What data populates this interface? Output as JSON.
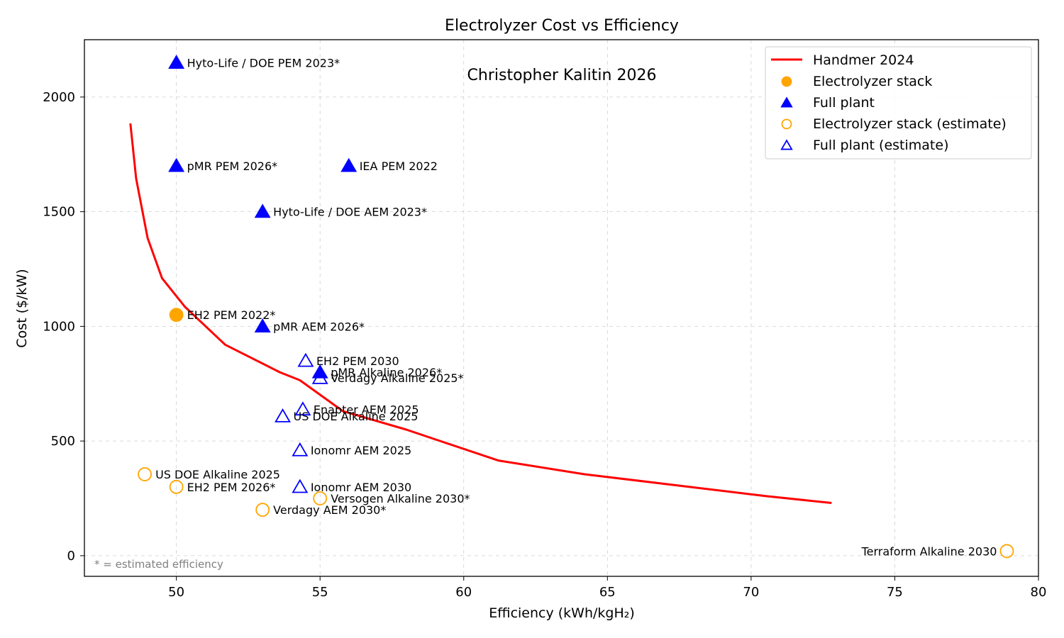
{
  "chart_data": {
    "type": "scatter",
    "title": "Electrolyzer Cost vs Efficiency",
    "watermark": "Christopher Kalitin 2026",
    "footnote": "* = estimated efficiency",
    "xlabel": "Efficiency (kWh/kgH₂)",
    "ylabel": "Cost ($/kW)",
    "xlim": [
      46.8,
      80
    ],
    "ylim": [
      -90,
      2250
    ],
    "x_ticks": [
      50,
      55,
      60,
      65,
      70,
      75,
      80
    ],
    "y_ticks": [
      0,
      500,
      1000,
      1500,
      2000
    ],
    "grid": true,
    "legend_position": "top-right",
    "colors": {
      "curve": "#ff0000",
      "stack": "#ffa500",
      "plant": "#0000ff"
    },
    "legend": [
      {
        "key": "curve",
        "label": "Handmer 2024"
      },
      {
        "key": "stack",
        "label": "Electrolyzer stack"
      },
      {
        "key": "plant",
        "label": "Full plant"
      },
      {
        "key": "stack_est",
        "label": "Electrolyzer stack (estimate)"
      },
      {
        "key": "plant_est",
        "label": "Full plant (estimate)"
      }
    ],
    "curve": {
      "name": "Handmer 2024",
      "x": [
        48.4,
        48.6,
        49.0,
        49.5,
        50.3,
        51.7,
        53.6,
        54.3,
        55.8,
        58.0,
        61.2,
        64.2,
        67.2,
        70.5,
        72.8
      ],
      "y": [
        1885,
        1645,
        1385,
        1210,
        1085,
        920,
        800,
        765,
        630,
        550,
        415,
        355,
        310,
        260,
        230
      ]
    },
    "points": [
      {
        "label": "Hyto-Life / DOE PEM 2023*",
        "x": 50.0,
        "y": 2150,
        "kind": "plant",
        "filled": true,
        "side": "right"
      },
      {
        "label": "pMR PEM 2026*",
        "x": 50.0,
        "y": 1700,
        "kind": "plant",
        "filled": true,
        "side": "right"
      },
      {
        "label": "IEA PEM 2022",
        "x": 56.0,
        "y": 1700,
        "kind": "plant",
        "filled": true,
        "side": "right"
      },
      {
        "label": "Hyto-Life / DOE AEM 2023*",
        "x": 53.0,
        "y": 1500,
        "kind": "plant",
        "filled": true,
        "side": "right"
      },
      {
        "label": "EH2 PEM 2022*",
        "x": 50.0,
        "y": 1050,
        "kind": "stack",
        "filled": true,
        "side": "right"
      },
      {
        "label": "pMR AEM 2026*",
        "x": 53.0,
        "y": 1000,
        "kind": "plant",
        "filled": true,
        "side": "right"
      },
      {
        "label": "EH2 PEM 2030",
        "x": 54.5,
        "y": 850,
        "kind": "plant",
        "filled": false,
        "side": "right"
      },
      {
        "label": "pMR Alkaline 2026*",
        "x": 55.0,
        "y": 800,
        "kind": "plant",
        "filled": true,
        "side": "right"
      },
      {
        "label": "Verdagy Alkaline 2025*",
        "x": 55.0,
        "y": 775,
        "kind": "plant",
        "filled": false,
        "side": "right"
      },
      {
        "label": "Enapter AEM 2025",
        "x": 54.4,
        "y": 638,
        "kind": "plant",
        "filled": false,
        "side": "right"
      },
      {
        "label": "US DOE Alkaline 2025",
        "x": 53.7,
        "y": 608,
        "kind": "plant",
        "filled": false,
        "side": "right"
      },
      {
        "label": "Ionomr AEM 2025",
        "x": 54.3,
        "y": 460,
        "kind": "plant",
        "filled": false,
        "side": "right"
      },
      {
        "label": "US DOE Alkaline 2025",
        "x": 48.9,
        "y": 355,
        "kind": "stack",
        "filled": false,
        "side": "right"
      },
      {
        "label": "EH2 PEM 2026*",
        "x": 50.0,
        "y": 300,
        "kind": "stack",
        "filled": false,
        "side": "right"
      },
      {
        "label": "Ionomr AEM 2030",
        "x": 54.3,
        "y": 300,
        "kind": "plant",
        "filled": false,
        "side": "right"
      },
      {
        "label": "Versogen Alkaline 2030*",
        "x": 55.0,
        "y": 250,
        "kind": "stack",
        "filled": false,
        "side": "right"
      },
      {
        "label": "Verdagy AEM 2030*",
        "x": 53.0,
        "y": 200,
        "kind": "stack",
        "filled": false,
        "side": "right"
      },
      {
        "label": "Terraform Alkaline 2030",
        "x": 78.9,
        "y": 20,
        "kind": "stack",
        "filled": false,
        "side": "left"
      }
    ]
  }
}
